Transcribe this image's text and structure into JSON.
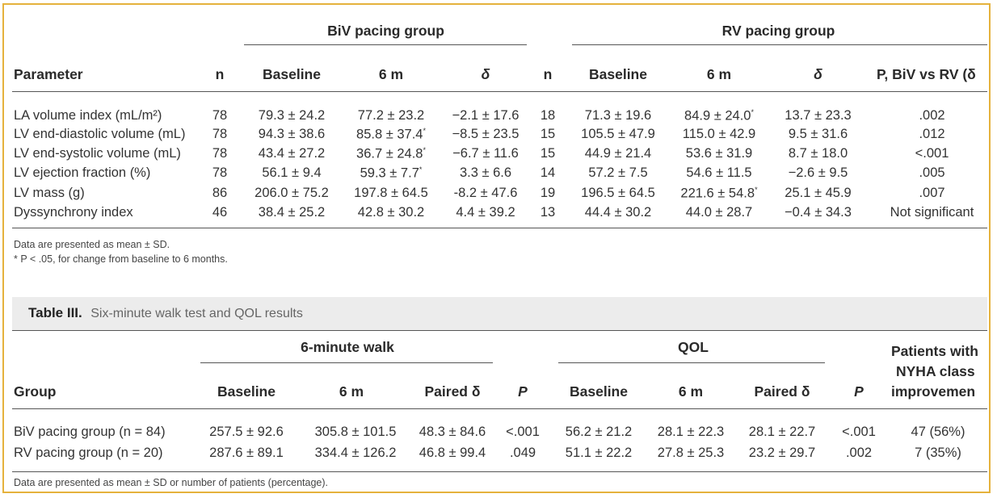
{
  "table2": {
    "group_biv": "BiV pacing group",
    "group_rv": "RV pacing group",
    "headers": {
      "parameter": "Parameter",
      "n1": "n",
      "baseline1": "Baseline",
      "m6_1": "6 m",
      "delta1": "δ",
      "n2": "n",
      "baseline2": "Baseline",
      "m6_2": "6 m",
      "delta2": "δ",
      "p": "P, BiV vs RV (δ"
    },
    "rows": [
      {
        "param": "LA volume index (mL/m²)",
        "n1": "78",
        "b1": "79.3 ± 24.2",
        "m1": "77.2 ± 23.2",
        "d1": "−2.1 ± 17.6",
        "n2": "18",
        "b2": "71.3 ± 19.6",
        "m2": "84.9 ± 24.0*",
        "d2": "13.7 ± 23.3",
        "p": ".002"
      },
      {
        "param": "LV end-diastolic volume (mL)",
        "n1": "78",
        "b1": "94.3 ± 38.6",
        "m1": "85.8 ± 37.4*",
        "d1": "−8.5 ± 23.5",
        "n2": "15",
        "b2": "105.5 ± 47.9",
        "m2": "115.0 ± 42.9",
        "d2": "9.5 ± 31.6",
        "p": ".012"
      },
      {
        "param": "LV end-systolic volume (mL)",
        "n1": "78",
        "b1": "43.4 ± 27.2",
        "m1": "36.7 ± 24.8*",
        "d1": "−6.7 ± 11.6",
        "n2": "15",
        "b2": "44.9 ± 21.4",
        "m2": "53.6 ± 31.9",
        "d2": "8.7 ± 18.0",
        "p": "<.001"
      },
      {
        "param": "LV ejection fraction (%)",
        "n1": "78",
        "b1": "56.1 ± 9.4",
        "m1": "59.3 ± 7.7*",
        "d1": "3.3 ± 6.6",
        "n2": "14",
        "b2": "57.2 ± 7.5",
        "m2": "54.6 ± 11.5",
        "d2": "−2.6 ± 9.5",
        "p": ".005"
      },
      {
        "param": "LV mass (g)",
        "n1": "86",
        "b1": "206.0 ± 75.2",
        "m1": "197.8 ± 64.5",
        "d1": "-8.2 ± 47.6",
        "n2": "19",
        "b2": "196.5 ± 64.5",
        "m2": "221.6 ± 54.8*",
        "d2": "25.1 ± 45.9",
        "p": ".007"
      },
      {
        "param": "Dyssynchrony index",
        "n1": "46",
        "b1": "38.4 ± 25.2",
        "m1": "42.8 ± 30.2",
        "d1": "4.4 ± 39.2",
        "n2": "13",
        "b2": "44.4 ± 30.2",
        "m2": "44.0 ± 28.7",
        "d2": "−0.4 ± 34.3",
        "p": "Not significant"
      }
    ],
    "notes": [
      "Data are presented as mean ± SD.",
      "* P < .05, for change from baseline to 6 months."
    ]
  },
  "table3": {
    "label": "Table III.",
    "title": "Six-minute walk test and QOL results",
    "group_walk": "6-minute walk",
    "group_qol": "QOL",
    "headers": {
      "group": "Group",
      "baseline1": "Baseline",
      "m6_1": "6 m",
      "paired1": "Paired δ",
      "p1": "P",
      "baseline2": "Baseline",
      "m6_2": "6 m",
      "paired2": "Paired δ",
      "p2": "P",
      "nyha_1": "Patients with",
      "nyha_2": "NYHA class",
      "nyha_3": "improvemen"
    },
    "rows": [
      {
        "group": "BiV pacing group (n = 84)",
        "b1": "257.5 ± 92.6",
        "m1": "305.8 ± 101.5",
        "pd1": "48.3 ± 84.6",
        "p1": "<.001",
        "b2": "56.2 ± 21.2",
        "m2": "28.1 ± 22.3",
        "pd2": "28.1 ± 22.7",
        "p2": "<.001",
        "nyha": "47 (56%)"
      },
      {
        "group": "RV pacing group (n = 20)",
        "b1": "287.6 ± 89.1",
        "m1": "334.4 ± 126.2",
        "pd1": "46.8 ± 99.4",
        "p1": ".049",
        "b2": "51.1 ± 22.2",
        "m2": "27.8 ± 25.3",
        "pd2": "23.2 ± 29.7",
        "p2": ".002",
        "nyha": "7 (35%)"
      }
    ],
    "note": "Data are presented as mean ± SD or number of patients (percentage)."
  }
}
